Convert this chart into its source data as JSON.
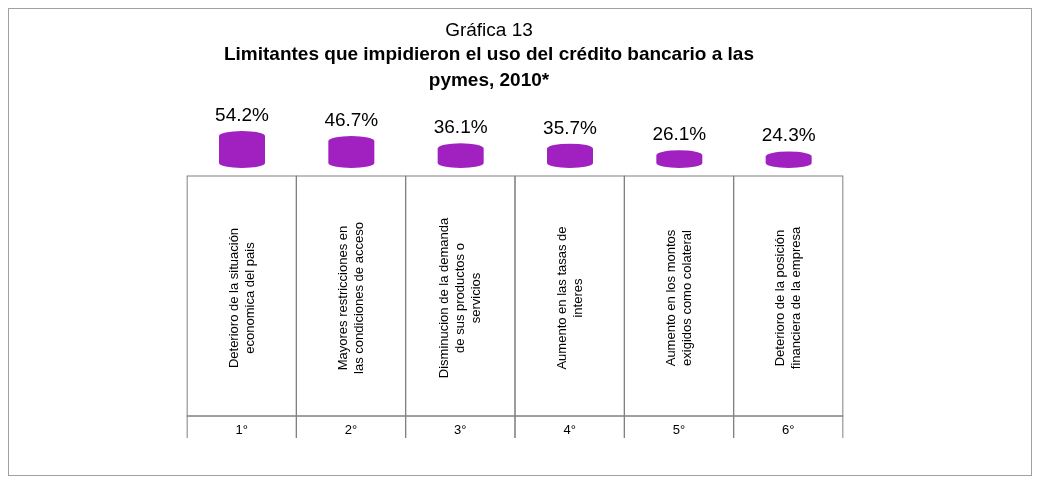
{
  "chart_data": {
    "type": "bar",
    "subtitle": "Gráfica 13",
    "title": "Limitantes que impidieron el uso del crédito bancario a las pymes, 2010*",
    "categories": [
      "Deterioro de la situación economica del pais",
      "Mayores restricciones en las condiciones de acceso",
      "Disminucion de la demanda de sus productos o servicios",
      "Aumento en las tasas de interes",
      "Aumento en los montos exigidos como colateral",
      "Deterioro de la posición financiera de la empresa"
    ],
    "values": [
      54.2,
      46.7,
      36.1,
      35.7,
      26.1,
      24.3
    ],
    "value_labels": [
      "54.2%",
      "46.7%",
      "36.1%",
      "35.7%",
      "26.1%",
      "24.3%"
    ],
    "annotations": [
      "1°",
      "2°",
      "3°",
      "4°",
      "5°",
      "6°"
    ],
    "color": "#a020c0"
  }
}
